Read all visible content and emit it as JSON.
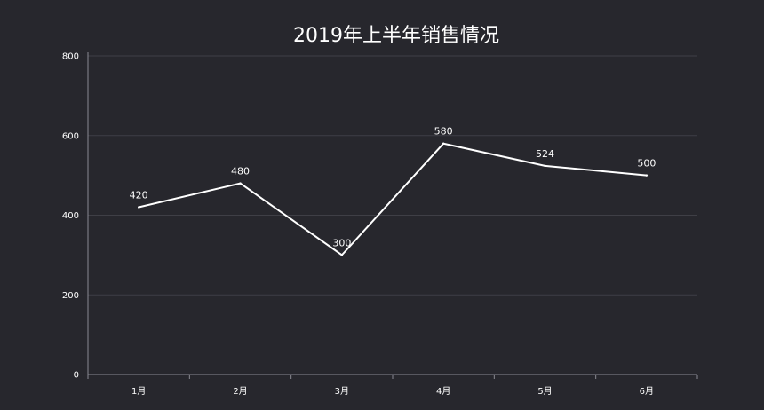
{
  "chart_data": {
    "type": "line",
    "title": "2019年上半年销售情况",
    "categories": [
      "1月",
      "2月",
      "3月",
      "4月",
      "5月",
      "6月"
    ],
    "series": [
      {
        "values": [
          420,
          480,
          300,
          580,
          524,
          500
        ]
      }
    ],
    "ylim": [
      0,
      800
    ],
    "yticks": [
      0,
      200,
      400,
      600,
      800
    ],
    "grid": true,
    "show_data_labels": true,
    "legend": "none"
  },
  "colors": {
    "background": "#27272d",
    "line": "#ffffff",
    "grid": "#3f3f46",
    "axis": "#8a8a92",
    "text": "#ffffff"
  }
}
